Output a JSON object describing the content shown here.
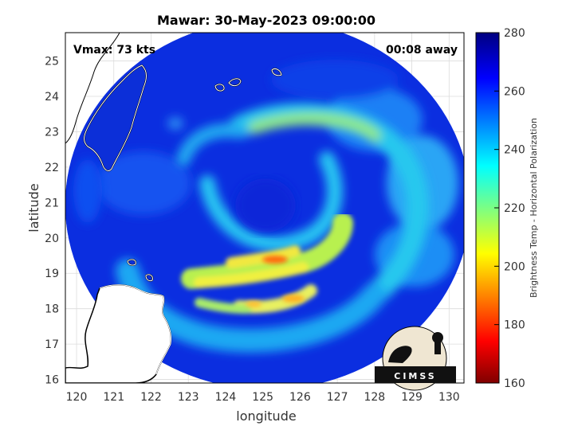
{
  "figure": {
    "title": "Mawar: 30-May-2023 09:00:00",
    "vmax_label": "Vmax: 73 kts",
    "time_label": "00:08 away",
    "logo_text": "CIMSS"
  },
  "map": {
    "xlabel": "longitude",
    "ylabel": "latitude",
    "lon_range": [
      119.7,
      130.4
    ],
    "lat_range": [
      15.9,
      25.8
    ],
    "lon_ticks": [
      "120",
      "121",
      "122",
      "123",
      "124",
      "125",
      "126",
      "127",
      "128",
      "129",
      "130"
    ],
    "lat_ticks": [
      "16",
      "17",
      "18",
      "19",
      "20",
      "21",
      "22",
      "23",
      "24",
      "25"
    ],
    "grid": true,
    "storm_center": {
      "lon": 125.0,
      "lat": 20.6
    }
  },
  "colorbar": {
    "label": "Brightness Temp - Horizontal Polarization",
    "range": [
      160,
      280
    ],
    "ticks": [
      "280",
      "260",
      "240",
      "220",
      "200",
      "180",
      "160"
    ],
    "colormap": "jet"
  },
  "colors": {
    "land_fill": "#ffffff",
    "coastline": "#000000",
    "swath_background": "#0a2bd6",
    "frame": "#000000"
  }
}
